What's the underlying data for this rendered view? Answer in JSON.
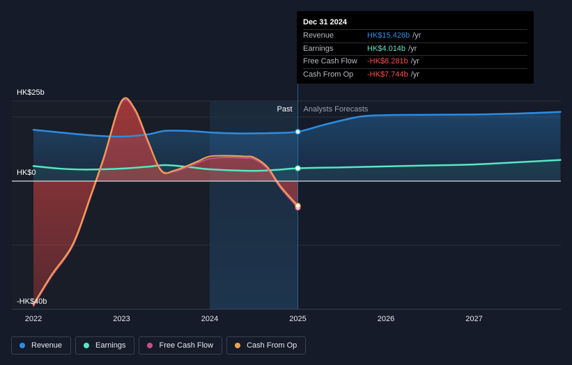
{
  "tooltip": {
    "date": "Dec 31 2024",
    "rows": [
      {
        "label": "Revenue",
        "value": "HK$15.426b",
        "unit": "/yr",
        "color": "#2d8de0"
      },
      {
        "label": "Earnings",
        "value": "HK$4.014b",
        "unit": "/yr",
        "color": "#58e6c4"
      },
      {
        "label": "Free Cash Flow",
        "value": "-HK$8.281b",
        "unit": "/yr",
        "color": "#ff4d4d"
      },
      {
        "label": "Cash From Op",
        "value": "-HK$7.744b",
        "unit": "/yr",
        "color": "#ff4d4d"
      }
    ]
  },
  "legend": [
    {
      "label": "Revenue",
      "color": "#2d8de0"
    },
    {
      "label": "Earnings",
      "color": "#58e6c4"
    },
    {
      "label": "Free Cash Flow",
      "color": "#c8508a"
    },
    {
      "label": "Cash From Op",
      "color": "#f0a050"
    }
  ],
  "chart_data": {
    "type": "line",
    "y_tick_labels": [
      "HK$25b",
      "HK$0",
      "-HK$40b"
    ],
    "x_tick_labels": [
      "2022",
      "2023",
      "2024",
      "2025",
      "2026",
      "2027"
    ],
    "ylim": [
      -40,
      25
    ],
    "xlim": [
      2021.75,
      2027.98
    ],
    "past_label": "Past",
    "forecast_label": "Analysts Forecasts",
    "divider_x": 2025.0,
    "highlight_range": [
      2024.0,
      2025.0
    ],
    "grid": true,
    "legend_position": "bottom-left",
    "series": [
      {
        "name": "Revenue",
        "color": "#2d8de0",
        "values": [
          [
            2022.0,
            16.0
          ],
          [
            2022.3,
            15.2
          ],
          [
            2022.7,
            14.2
          ],
          [
            2023.0,
            13.9
          ],
          [
            2023.3,
            14.6
          ],
          [
            2023.5,
            15.7
          ],
          [
            2023.8,
            15.6
          ],
          [
            2024.0,
            15.2
          ],
          [
            2024.3,
            14.9
          ],
          [
            2024.5,
            14.9
          ],
          [
            2024.7,
            15.0
          ],
          [
            2025.0,
            15.4
          ],
          [
            2025.3,
            17.6
          ],
          [
            2025.7,
            20.1
          ],
          [
            2026.0,
            20.6
          ],
          [
            2026.5,
            20.7
          ],
          [
            2027.0,
            20.8
          ],
          [
            2027.5,
            21.1
          ],
          [
            2027.98,
            21.6
          ]
        ]
      },
      {
        "name": "Earnings",
        "color": "#58e6c4",
        "values": [
          [
            2022.0,
            4.7
          ],
          [
            2022.3,
            3.9
          ],
          [
            2022.6,
            3.6
          ],
          [
            2023.0,
            3.9
          ],
          [
            2023.3,
            4.5
          ],
          [
            2023.5,
            5.0
          ],
          [
            2023.8,
            4.3
          ],
          [
            2024.0,
            3.7
          ],
          [
            2024.5,
            3.2
          ],
          [
            2024.8,
            3.6
          ],
          [
            2025.0,
            4.0
          ],
          [
            2025.5,
            4.3
          ],
          [
            2026.0,
            4.6
          ],
          [
            2026.5,
            4.9
          ],
          [
            2027.0,
            5.2
          ],
          [
            2027.5,
            5.9
          ],
          [
            2027.98,
            6.6
          ]
        ]
      },
      {
        "name": "Free Cash Flow",
        "color": "#c8508a",
        "values": [
          [
            2022.0,
            -39.0
          ],
          [
            2022.2,
            -30.0
          ],
          [
            2022.45,
            -20.0
          ],
          [
            2022.65,
            -5.0
          ],
          [
            2022.8,
            7.0
          ],
          [
            2023.0,
            24.5
          ],
          [
            2023.15,
            22.0
          ],
          [
            2023.3,
            12.0
          ],
          [
            2023.45,
            3.5
          ],
          [
            2023.6,
            3.0
          ],
          [
            2023.85,
            5.5
          ],
          [
            2024.0,
            7.0
          ],
          [
            2024.2,
            7.4
          ],
          [
            2024.4,
            7.2
          ],
          [
            2024.5,
            6.9
          ],
          [
            2024.65,
            4.0
          ],
          [
            2024.8,
            -2.0
          ],
          [
            2025.0,
            -8.3
          ]
        ]
      },
      {
        "name": "Cash From Op",
        "color": "#f0a050",
        "values": [
          [
            2022.0,
            -38.5
          ],
          [
            2022.2,
            -29.5
          ],
          [
            2022.45,
            -19.5
          ],
          [
            2022.65,
            -4.5
          ],
          [
            2022.8,
            7.5
          ],
          [
            2023.0,
            25.0
          ],
          [
            2023.15,
            22.5
          ],
          [
            2023.3,
            12.5
          ],
          [
            2023.45,
            3.2
          ],
          [
            2023.6,
            3.3
          ],
          [
            2023.85,
            6.0
          ],
          [
            2024.0,
            7.7
          ],
          [
            2024.2,
            7.9
          ],
          [
            2024.4,
            7.7
          ],
          [
            2024.5,
            7.4
          ],
          [
            2024.65,
            4.5
          ],
          [
            2024.8,
            -1.5
          ],
          [
            2025.0,
            -7.7
          ]
        ]
      }
    ]
  }
}
